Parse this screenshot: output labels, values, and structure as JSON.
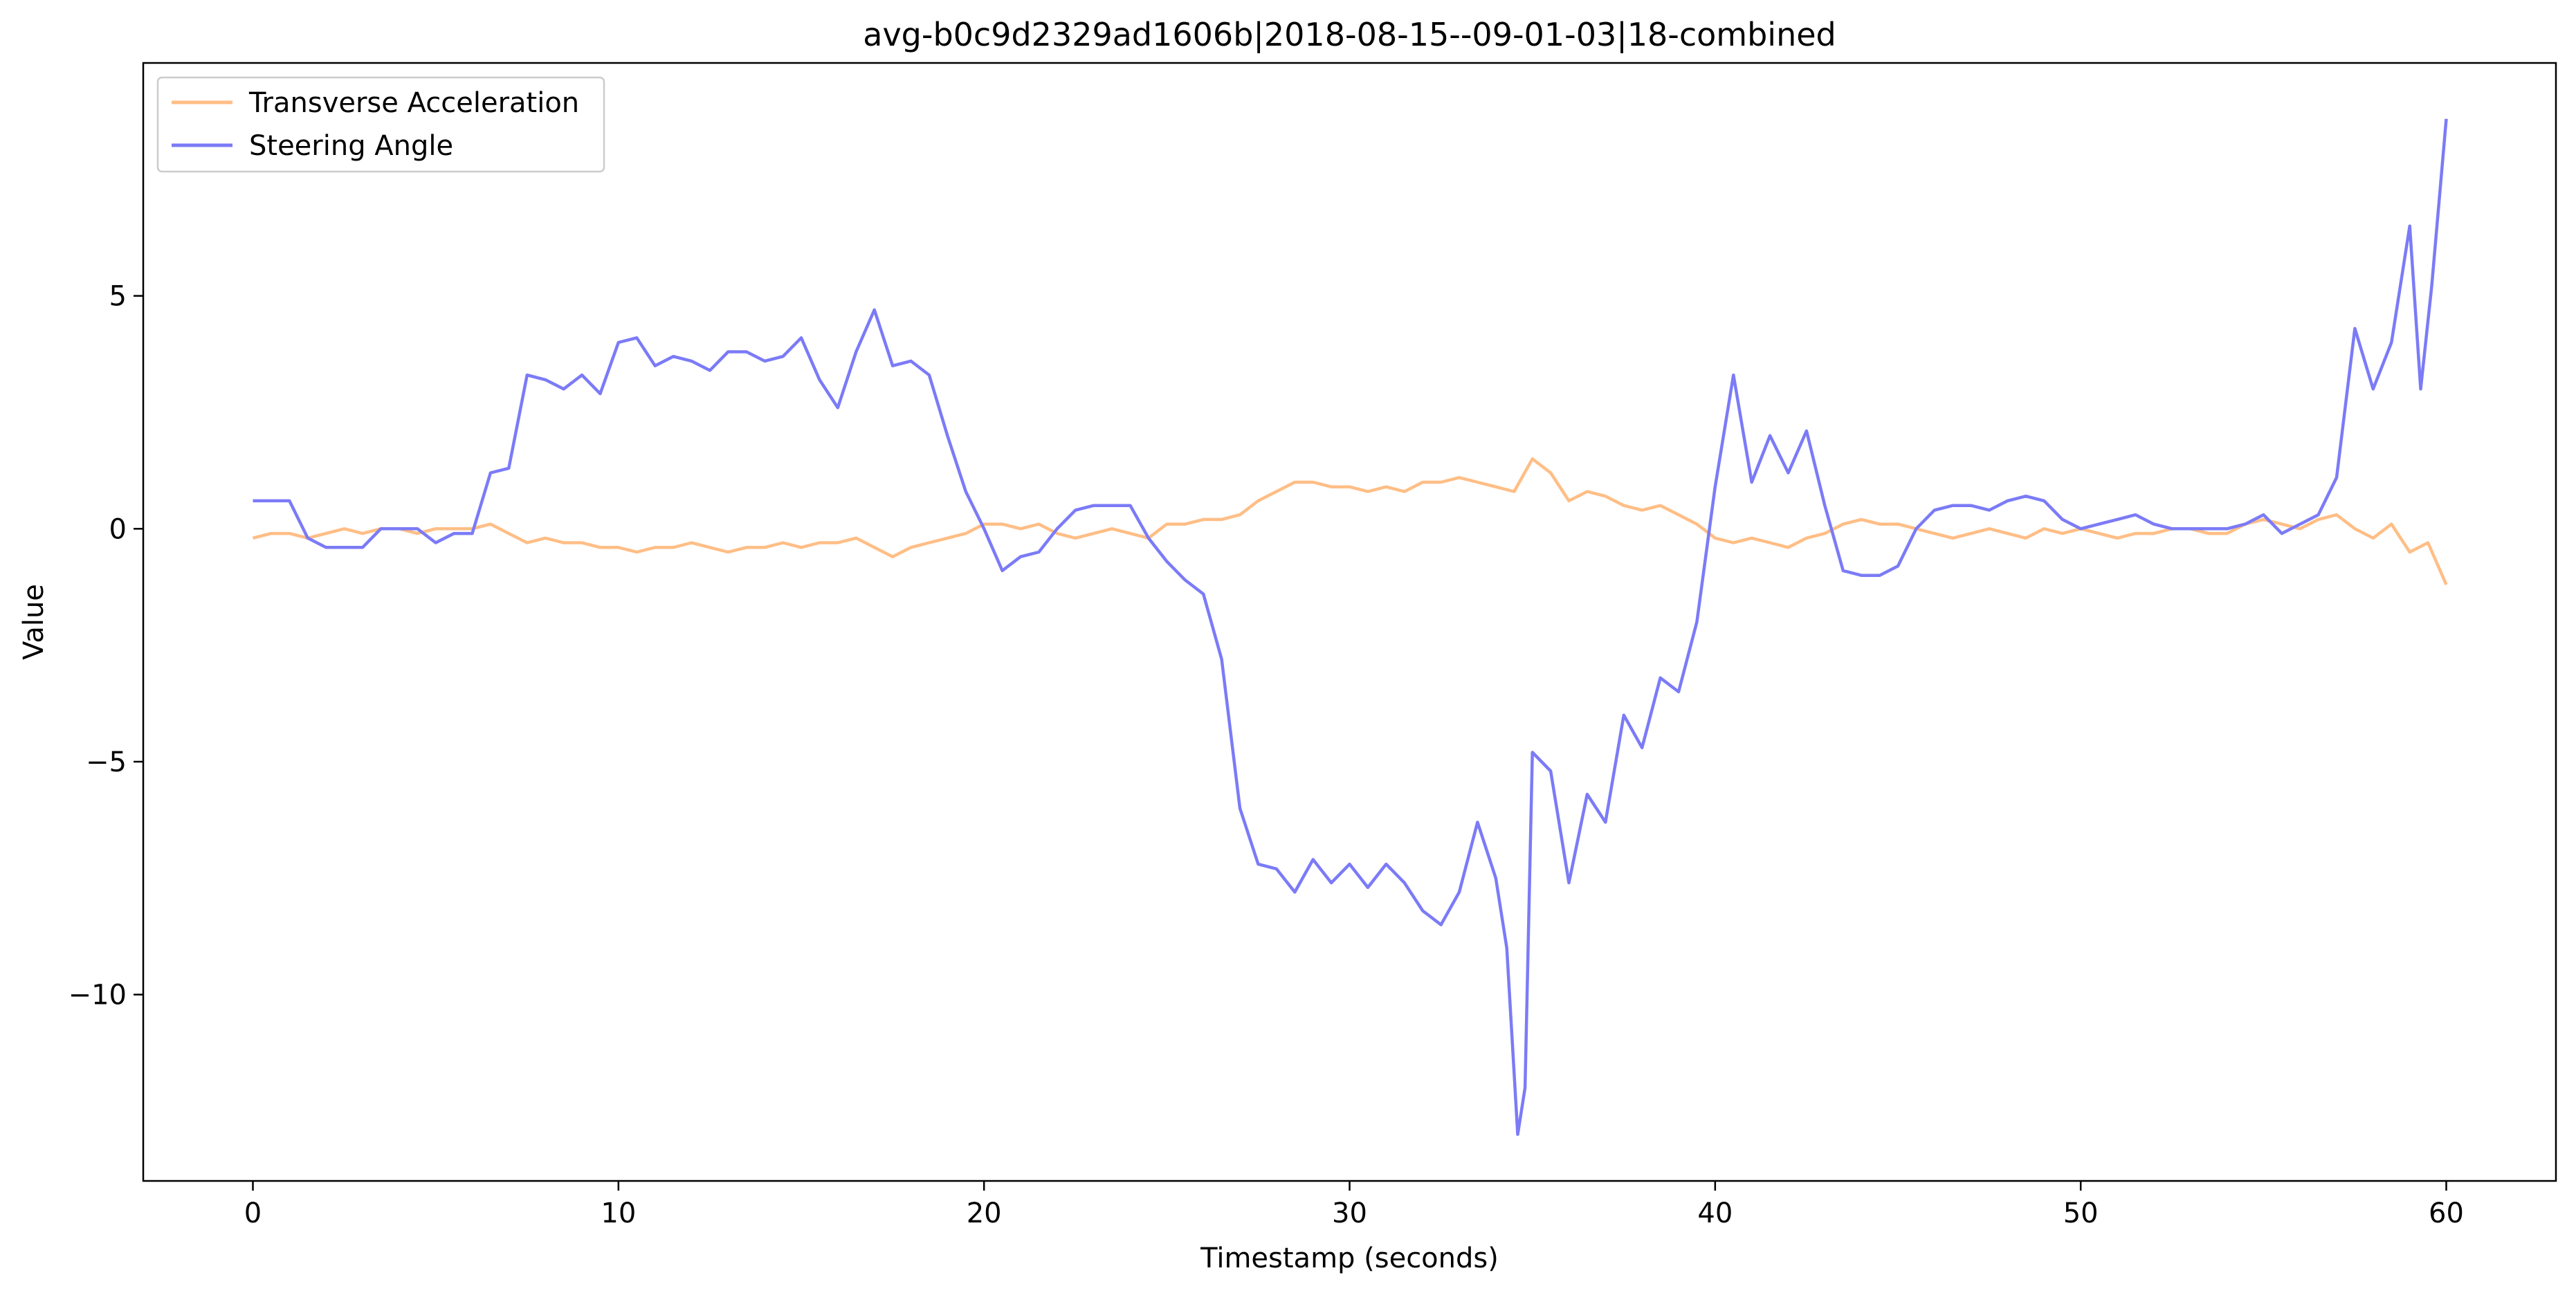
{
  "chart_data": {
    "type": "line",
    "title": "avg-b0c9d2329ad1606b|2018-08-15--09-01-03|18-combined",
    "xlabel": "Timestamp (seconds)",
    "ylabel": "Value",
    "xlim": [
      -3,
      63
    ],
    "ylim": [
      -14,
      10
    ],
    "xticks": [
      0,
      10,
      20,
      30,
      40,
      50,
      60
    ],
    "xtick_labels": [
      "0",
      "10",
      "20",
      "30",
      "40",
      "50",
      "60"
    ],
    "yticks": [
      5,
      0,
      -5,
      -10
    ],
    "ytick_labels": [
      "5",
      "0",
      "−5",
      "−10"
    ],
    "grid": false,
    "legend_position": "top-left",
    "series": [
      {
        "name": "Transverse Acceleration",
        "color": "#ffbe86",
        "points": [
          [
            0,
            -0.2
          ],
          [
            0.5,
            -0.1
          ],
          [
            1,
            -0.1
          ],
          [
            1.5,
            -0.2
          ],
          [
            2,
            -0.1
          ],
          [
            2.5,
            0
          ],
          [
            3,
            -0.1
          ],
          [
            3.5,
            0
          ],
          [
            4,
            0
          ],
          [
            4.5,
            -0.1
          ],
          [
            5,
            0
          ],
          [
            5.5,
            0
          ],
          [
            6,
            0
          ],
          [
            6.5,
            0.1
          ],
          [
            7,
            -0.1
          ],
          [
            7.5,
            -0.3
          ],
          [
            8,
            -0.2
          ],
          [
            8.5,
            -0.3
          ],
          [
            9,
            -0.3
          ],
          [
            9.5,
            -0.4
          ],
          [
            10,
            -0.4
          ],
          [
            10.5,
            -0.5
          ],
          [
            11,
            -0.4
          ],
          [
            11.5,
            -0.4
          ],
          [
            12,
            -0.3
          ],
          [
            12.5,
            -0.4
          ],
          [
            13,
            -0.5
          ],
          [
            13.5,
            -0.4
          ],
          [
            14,
            -0.4
          ],
          [
            14.5,
            -0.3
          ],
          [
            15,
            -0.4
          ],
          [
            15.5,
            -0.3
          ],
          [
            16,
            -0.3
          ],
          [
            16.5,
            -0.2
          ],
          [
            17,
            -0.4
          ],
          [
            17.5,
            -0.6
          ],
          [
            18,
            -0.4
          ],
          [
            18.5,
            -0.3
          ],
          [
            19,
            -0.2
          ],
          [
            19.5,
            -0.1
          ],
          [
            20,
            0.1
          ],
          [
            20.5,
            0.1
          ],
          [
            21,
            0
          ],
          [
            21.5,
            0.1
          ],
          [
            22,
            -0.1
          ],
          [
            22.5,
            -0.2
          ],
          [
            23,
            -0.1
          ],
          [
            23.5,
            0
          ],
          [
            24,
            -0.1
          ],
          [
            24.5,
            -0.2
          ],
          [
            25,
            0.1
          ],
          [
            25.5,
            0.1
          ],
          [
            26,
            0.2
          ],
          [
            26.5,
            0.2
          ],
          [
            27,
            0.3
          ],
          [
            27.5,
            0.6
          ],
          [
            28,
            0.8
          ],
          [
            28.5,
            1.0
          ],
          [
            29,
            1.0
          ],
          [
            29.5,
            0.9
          ],
          [
            30,
            0.9
          ],
          [
            30.5,
            0.8
          ],
          [
            31,
            0.9
          ],
          [
            31.5,
            0.8
          ],
          [
            32,
            1.0
          ],
          [
            32.5,
            1.0
          ],
          [
            33,
            1.1
          ],
          [
            33.5,
            1.0
          ],
          [
            34,
            0.9
          ],
          [
            34.5,
            0.8
          ],
          [
            35,
            1.5
          ],
          [
            35.5,
            1.2
          ],
          [
            36,
            0.6
          ],
          [
            36.5,
            0.8
          ],
          [
            37,
            0.7
          ],
          [
            37.5,
            0.5
          ],
          [
            38,
            0.4
          ],
          [
            38.5,
            0.5
          ],
          [
            39,
            0.3
          ],
          [
            39.5,
            0.1
          ],
          [
            40,
            -0.2
          ],
          [
            40.5,
            -0.3
          ],
          [
            41,
            -0.2
          ],
          [
            41.5,
            -0.3
          ],
          [
            42,
            -0.4
          ],
          [
            42.5,
            -0.2
          ],
          [
            43,
            -0.1
          ],
          [
            43.5,
            0.1
          ],
          [
            44,
            0.2
          ],
          [
            44.5,
            0.1
          ],
          [
            45,
            0.1
          ],
          [
            45.5,
            0
          ],
          [
            46,
            -0.1
          ],
          [
            46.5,
            -0.2
          ],
          [
            47,
            -0.1
          ],
          [
            47.5,
            0
          ],
          [
            48,
            -0.1
          ],
          [
            48.5,
            -0.2
          ],
          [
            49,
            0
          ],
          [
            49.5,
            -0.1
          ],
          [
            50,
            0
          ],
          [
            50.5,
            -0.1
          ],
          [
            51,
            -0.2
          ],
          [
            51.5,
            -0.1
          ],
          [
            52,
            -0.1
          ],
          [
            52.5,
            0
          ],
          [
            53,
            0
          ],
          [
            53.5,
            -0.1
          ],
          [
            54,
            -0.1
          ],
          [
            54.5,
            0.1
          ],
          [
            55,
            0.2
          ],
          [
            55.5,
            0.1
          ],
          [
            56,
            0
          ],
          [
            56.5,
            0.2
          ],
          [
            57,
            0.3
          ],
          [
            57.5,
            0
          ],
          [
            58,
            -0.2
          ],
          [
            58.5,
            0.1
          ],
          [
            59,
            -0.5
          ],
          [
            59.5,
            -0.3
          ],
          [
            60,
            -1.2
          ]
        ]
      },
      {
        "name": "Steering Angle",
        "color": "#7b7bf7",
        "points": [
          [
            0,
            0.6
          ],
          [
            0.5,
            0.6
          ],
          [
            1,
            0.6
          ],
          [
            1.5,
            -0.2
          ],
          [
            2,
            -0.4
          ],
          [
            2.5,
            -0.4
          ],
          [
            3,
            -0.4
          ],
          [
            3.5,
            0
          ],
          [
            4,
            0
          ],
          [
            4.5,
            0
          ],
          [
            5,
            -0.3
          ],
          [
            5.5,
            -0.1
          ],
          [
            6,
            -0.1
          ],
          [
            6.5,
            1.2
          ],
          [
            7,
            1.3
          ],
          [
            7.5,
            3.3
          ],
          [
            8,
            3.2
          ],
          [
            8.5,
            3.0
          ],
          [
            9,
            3.3
          ],
          [
            9.5,
            2.9
          ],
          [
            10,
            4.0
          ],
          [
            10.5,
            4.1
          ],
          [
            11,
            3.5
          ],
          [
            11.5,
            3.7
          ],
          [
            12,
            3.6
          ],
          [
            12.5,
            3.4
          ],
          [
            13,
            3.8
          ],
          [
            13.5,
            3.8
          ],
          [
            14,
            3.6
          ],
          [
            14.5,
            3.7
          ],
          [
            15,
            4.1
          ],
          [
            15.5,
            3.2
          ],
          [
            16,
            2.6
          ],
          [
            16.5,
            3.8
          ],
          [
            17,
            4.7
          ],
          [
            17.5,
            3.5
          ],
          [
            18,
            3.6
          ],
          [
            18.5,
            3.3
          ],
          [
            19,
            2.0
          ],
          [
            19.5,
            0.8
          ],
          [
            20,
            0
          ],
          [
            20.5,
            -0.9
          ],
          [
            21,
            -0.6
          ],
          [
            21.5,
            -0.5
          ],
          [
            22,
            0
          ],
          [
            22.5,
            0.4
          ],
          [
            23,
            0.5
          ],
          [
            23.5,
            0.5
          ],
          [
            24,
            0.5
          ],
          [
            24.5,
            -0.2
          ],
          [
            25,
            -0.7
          ],
          [
            25.5,
            -1.1
          ],
          [
            26,
            -1.4
          ],
          [
            26.5,
            -2.8
          ],
          [
            27,
            -6.0
          ],
          [
            27.5,
            -7.2
          ],
          [
            28,
            -7.3
          ],
          [
            28.5,
            -7.8
          ],
          [
            29,
            -7.1
          ],
          [
            29.5,
            -7.6
          ],
          [
            30,
            -7.2
          ],
          [
            30.5,
            -7.7
          ],
          [
            31,
            -7.2
          ],
          [
            31.5,
            -7.6
          ],
          [
            32,
            -8.2
          ],
          [
            32.5,
            -8.5
          ],
          [
            33,
            -7.8
          ],
          [
            33.5,
            -6.3
          ],
          [
            34,
            -7.5
          ],
          [
            34.3,
            -9.0
          ],
          [
            34.6,
            -13.0
          ],
          [
            34.8,
            -12.0
          ],
          [
            35,
            -4.8
          ],
          [
            35.5,
            -5.2
          ],
          [
            36,
            -7.6
          ],
          [
            36.5,
            -5.7
          ],
          [
            37,
            -6.3
          ],
          [
            37.5,
            -4.0
          ],
          [
            38,
            -4.7
          ],
          [
            38.5,
            -3.2
          ],
          [
            39,
            -3.5
          ],
          [
            39.5,
            -2.0
          ],
          [
            40,
            0.9
          ],
          [
            40.5,
            3.3
          ],
          [
            41,
            1.0
          ],
          [
            41.5,
            2.0
          ],
          [
            42,
            1.2
          ],
          [
            42.5,
            2.1
          ],
          [
            43,
            0.5
          ],
          [
            43.5,
            -0.9
          ],
          [
            44,
            -1.0
          ],
          [
            44.5,
            -1.0
          ],
          [
            45,
            -0.8
          ],
          [
            45.5,
            0
          ],
          [
            46,
            0.4
          ],
          [
            46.5,
            0.5
          ],
          [
            47,
            0.5
          ],
          [
            47.5,
            0.4
          ],
          [
            48,
            0.6
          ],
          [
            48.5,
            0.7
          ],
          [
            49,
            0.6
          ],
          [
            49.5,
            0.2
          ],
          [
            50,
            0
          ],
          [
            50.5,
            0.1
          ],
          [
            51,
            0.2
          ],
          [
            51.5,
            0.3
          ],
          [
            52,
            0.1
          ],
          [
            52.5,
            0
          ],
          [
            53,
            0
          ],
          [
            53.5,
            0
          ],
          [
            54,
            0
          ],
          [
            54.5,
            0.1
          ],
          [
            55,
            0.3
          ],
          [
            55.5,
            -0.1
          ],
          [
            56,
            0.1
          ],
          [
            56.5,
            0.3
          ],
          [
            57,
            1.1
          ],
          [
            57.5,
            4.3
          ],
          [
            58,
            3.0
          ],
          [
            58.5,
            4.0
          ],
          [
            59,
            6.5
          ],
          [
            59.3,
            3.0
          ],
          [
            59.6,
            5.2
          ],
          [
            60,
            8.8
          ]
        ]
      }
    ]
  }
}
